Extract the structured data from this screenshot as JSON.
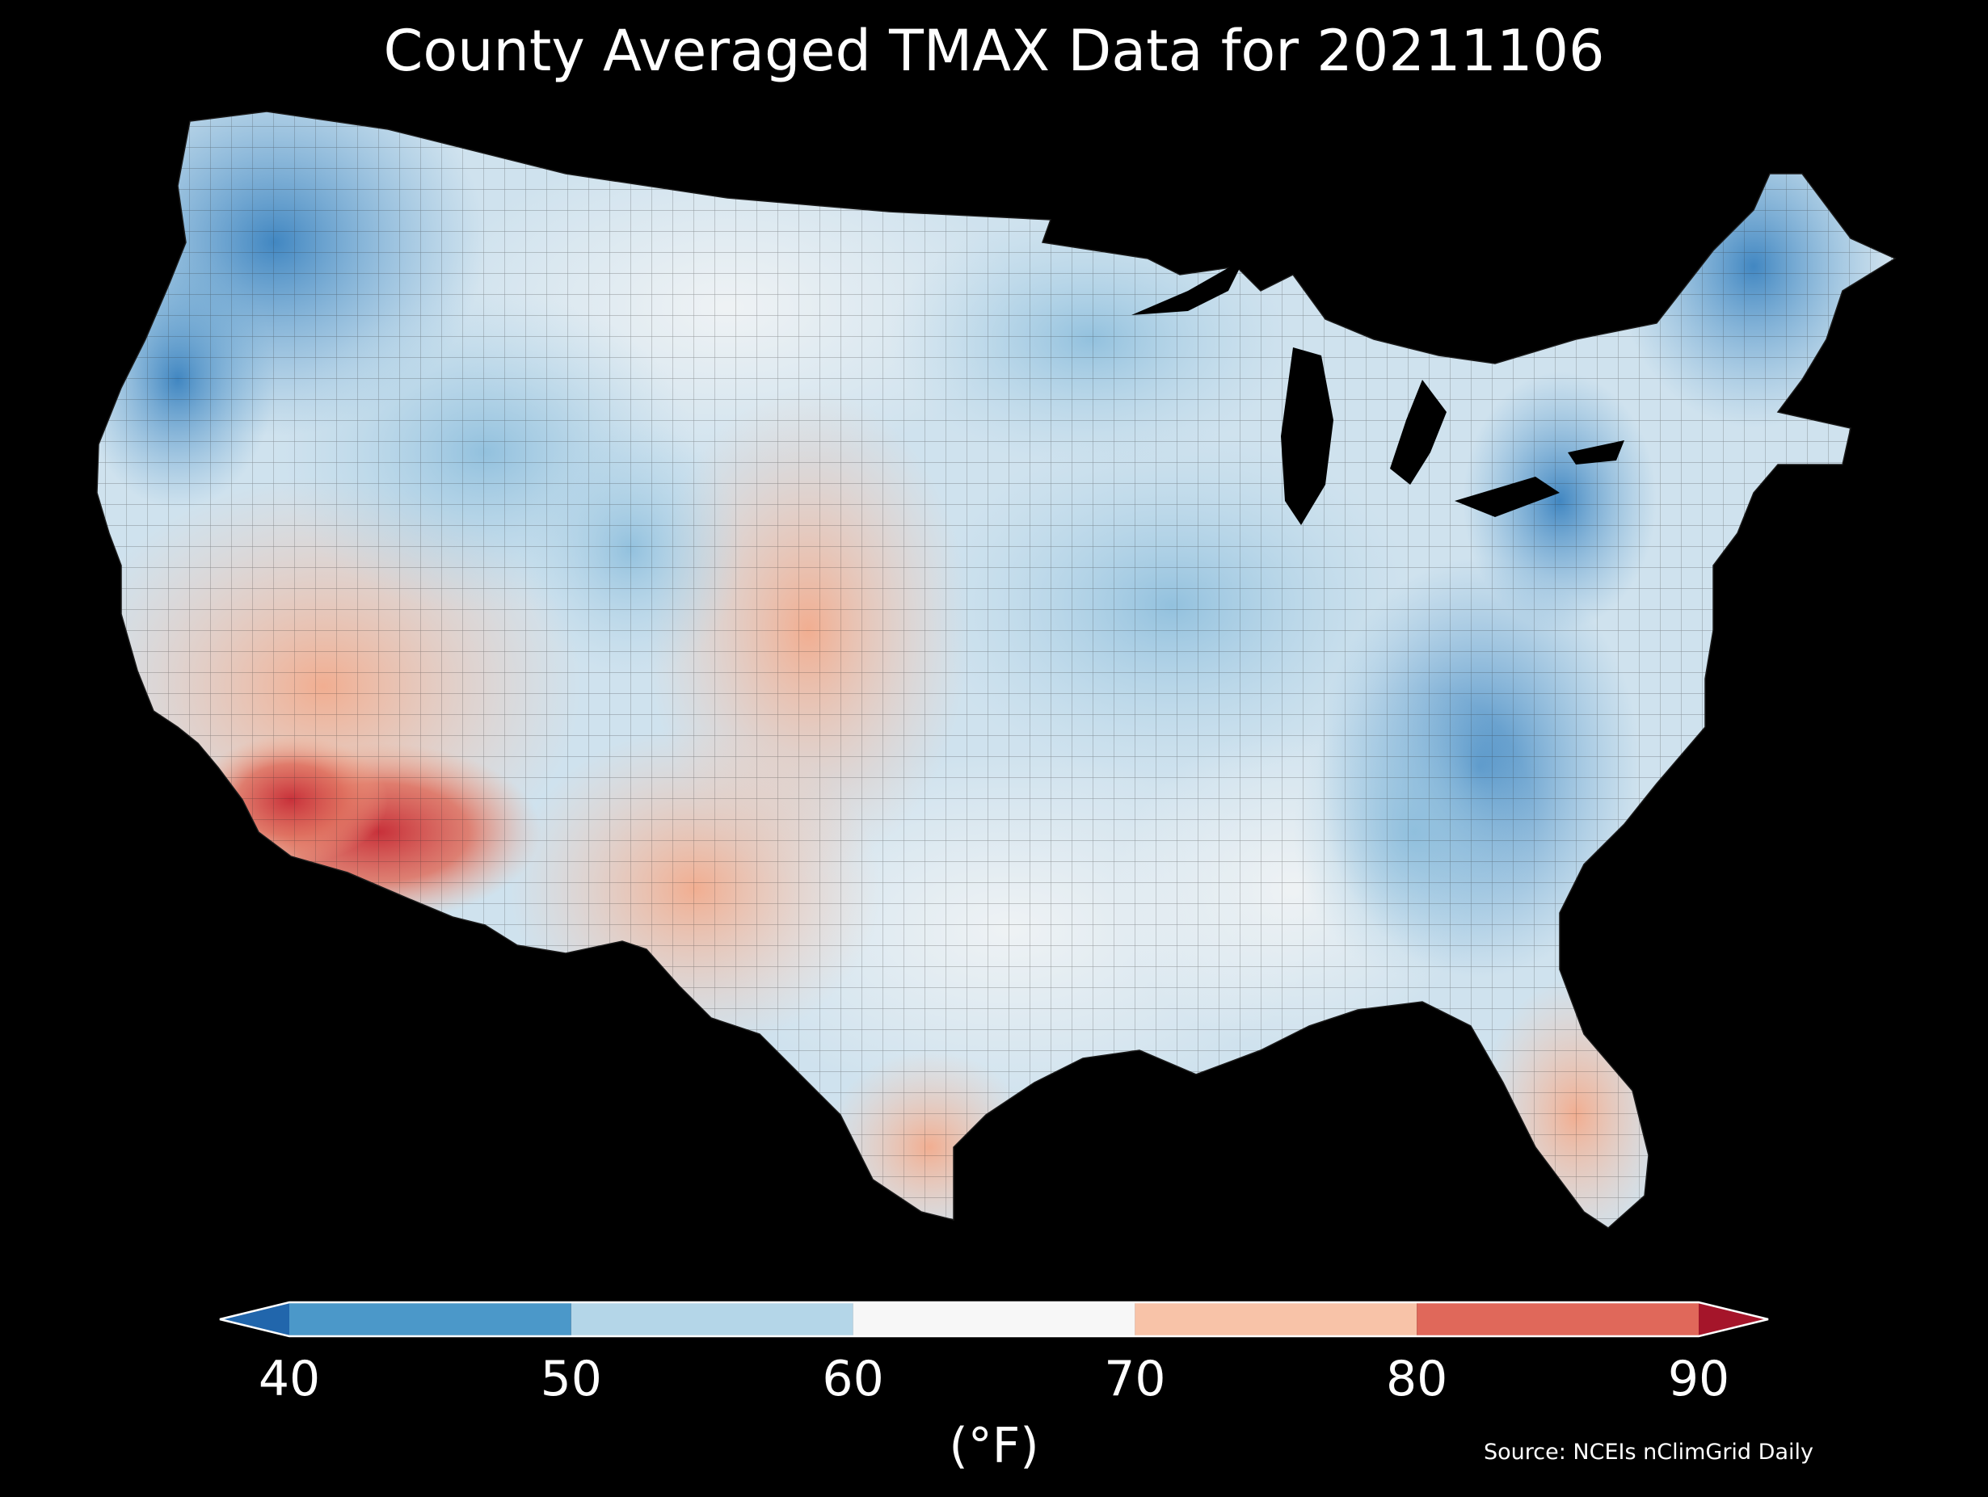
{
  "title": "County Averaged TMAX Data for 20211106",
  "map": {
    "region": "contiguous-united-states",
    "fill": "county TMAX color field",
    "regions": [
      {
        "name": "pacific-northwest",
        "value_band": "40-50"
      },
      {
        "name": "northern-rockies",
        "value_band": "50-60"
      },
      {
        "name": "northern-plains",
        "value_band": "60-70"
      },
      {
        "name": "central-plains",
        "value_band": "70-80"
      },
      {
        "name": "desert-southwest",
        "value_band": "80-90"
      },
      {
        "name": "texas-gulf",
        "value_band": "60-70"
      },
      {
        "name": "appalachians-northeast",
        "value_band": "40-50"
      },
      {
        "name": "southeast",
        "value_band": "50-60"
      },
      {
        "name": "florida",
        "value_band": "70-80"
      }
    ]
  },
  "colorbar": {
    "ticks": [
      "40",
      "50",
      "60",
      "70",
      "80",
      "90"
    ],
    "label": "(°F)",
    "bins": [
      {
        "range": [
          40,
          50
        ],
        "color": "#4b98c9"
      },
      {
        "range": [
          50,
          60
        ],
        "color": "#b4d6e8"
      },
      {
        "range": [
          60,
          70
        ],
        "color": "#f7f7f7"
      },
      {
        "range": [
          70,
          80
        ],
        "color": "#f8c3a8"
      },
      {
        "range": [
          80,
          90
        ],
        "color": "#e0685a"
      }
    ],
    "under_color": "#2166ac",
    "over_color": "#a5152a"
  },
  "source": "Source: NCEIs nClimGrid Daily"
}
